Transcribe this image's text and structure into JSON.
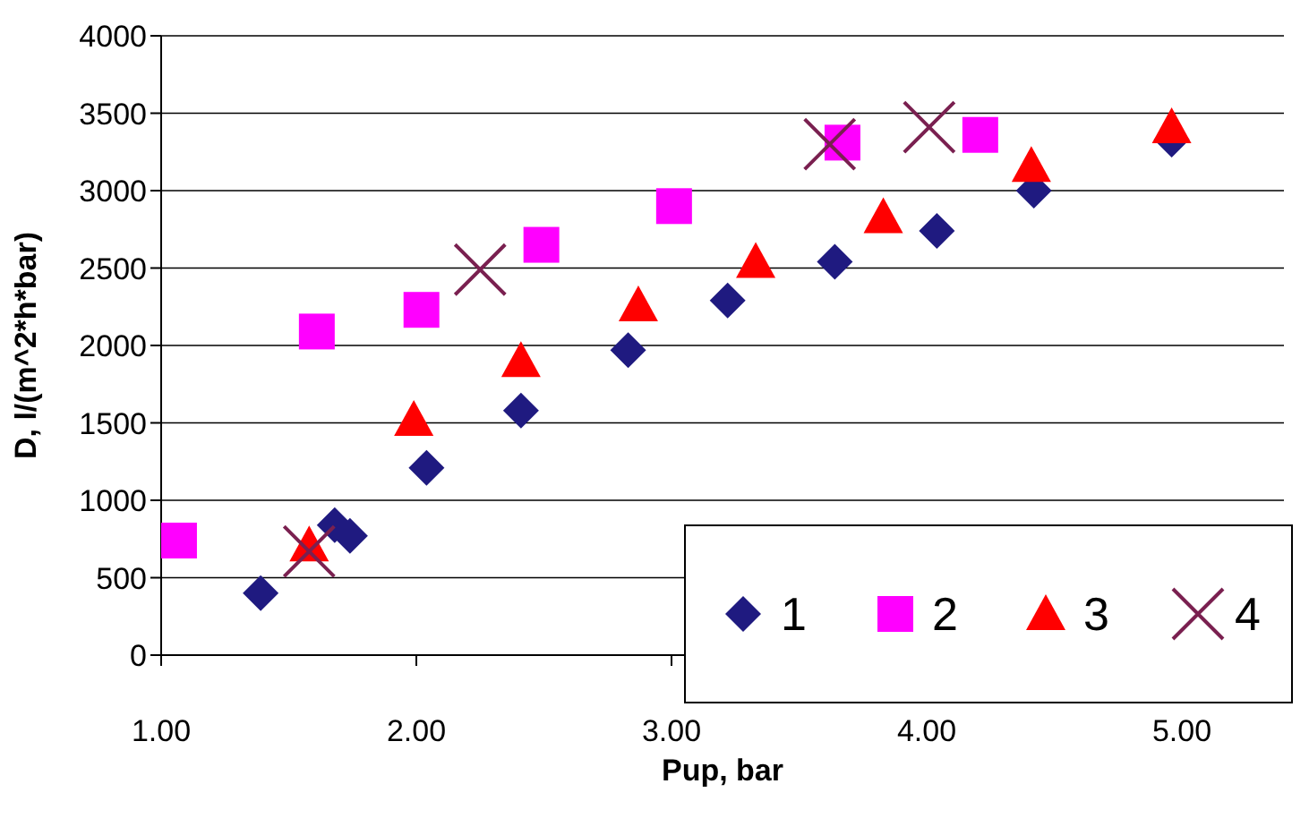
{
  "chart_data": {
    "type": "scatter",
    "xlabel": "Pup, bar",
    "ylabel": "D, l/(m^2*h*bar)",
    "xlim": [
      1,
      5.4
    ],
    "xticks": [
      {
        "value": 1,
        "label": "1.00"
      },
      {
        "value": 2,
        "label": "2.00"
      },
      {
        "value": 3,
        "label": "3.00"
      },
      {
        "value": 4,
        "label": "4.00"
      },
      {
        "value": 5,
        "label": "5.00"
      }
    ],
    "ylim": [
      0,
      4000
    ],
    "yticks": [
      0,
      500,
      1000,
      1500,
      2000,
      2500,
      3000,
      3500,
      4000
    ],
    "grid": "y",
    "legend": "bottom right",
    "series": [
      {
        "name": "1",
        "color": "#1f1a80",
        "marker": "diamond",
        "x": [
          1.39,
          1.68,
          1.74,
          2.04,
          2.41,
          2.83,
          3.22,
          3.64,
          4.04,
          4.42,
          4.96
        ],
        "values": [
          400,
          840,
          770,
          1210,
          1580,
          1970,
          2290,
          2540,
          2740,
          3000,
          3330
        ]
      },
      {
        "name": "2",
        "color": "#ff00ff",
        "marker": "square",
        "x": [
          1.07,
          1.61,
          2.02,
          2.49,
          3.01,
          3.67,
          4.21
        ],
        "values": [
          740,
          2090,
          2230,
          2650,
          2900,
          3310,
          3360
        ]
      },
      {
        "name": "3",
        "color": "#ff0000",
        "marker": "triangle",
        "x": [
          1.58,
          1.99,
          2.41,
          2.87,
          3.33,
          3.83,
          4.41,
          4.96
        ],
        "values": [
          710,
          1520,
          1900,
          2260,
          2540,
          2830,
          3160,
          3410
        ]
      },
      {
        "name": "4",
        "color": "#7a2050",
        "marker": "cross",
        "x": [
          1.58,
          2.25,
          3.62,
          4.01
        ],
        "values": [
          670,
          2490,
          3300,
          3410
        ]
      }
    ]
  }
}
